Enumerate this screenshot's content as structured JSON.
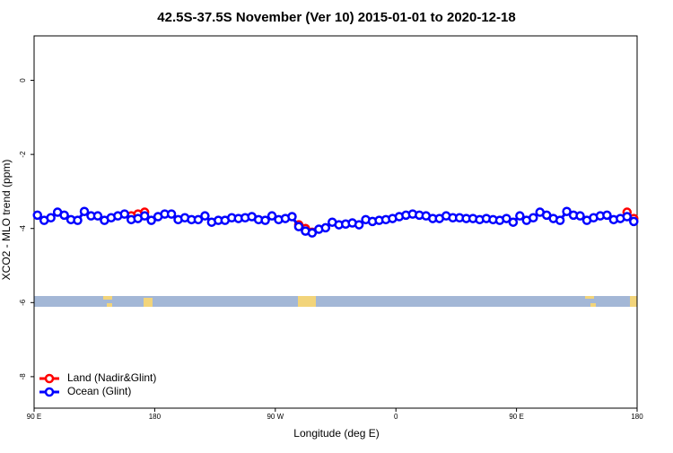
{
  "chart_data": {
    "type": "line",
    "title": "42.5S-37.5S November (Ver 10)   2015-01-01 to 2020-12-18",
    "xlabel": "Longitude (deg E)",
    "ylabel": "XCO2 - MLO trend (ppm)",
    "xlim": [
      90,
      540
    ],
    "xticks": [
      {
        "value": 90,
        "label": "90 E"
      },
      180,
      {
        "value": 270,
        "label": "90 W"
      },
      {
        "value": 360,
        "label": "0"
      },
      {
        "value": 450,
        "label": "90 E"
      },
      {
        "value": 540,
        "label": "180"
      }
    ],
    "ylim": [
      -8.85,
      1.2
    ],
    "yticks": [
      0,
      -2,
      -4,
      -6,
      -8
    ],
    "legend": "bottom-left",
    "series": [
      {
        "name": "Land (Nadir&Glint)",
        "color": "#ff0000",
        "x": [
          162.5,
          167.5,
          172.5,
          null,
          287.5,
          292.5,
          297.5,
          null,
          532.5,
          537.5
        ],
        "values": [
          -3.66,
          -3.61,
          -3.56,
          null,
          -3.9,
          -4.0,
          -4.1,
          null,
          -3.56,
          -3.73
        ]
      },
      {
        "name": "Ocean (Glint)",
        "color": "#0000ff",
        "x": [
          92.5,
          97.5,
          102.5,
          107.5,
          112.5,
          117.5,
          122.5,
          127.5,
          132.5,
          137.5,
          142.5,
          147.5,
          152.5,
          157.5,
          162.5,
          167.5,
          172.5,
          177.5,
          182.5,
          187.5,
          192.5,
          197.5,
          202.5,
          207.5,
          212.5,
          217.5,
          222.5,
          227.5,
          232.5,
          237.5,
          242.5,
          247.5,
          252.5,
          257.5,
          262.5,
          267.5,
          272.5,
          277.5,
          282.5,
          287.5,
          292.5,
          297.5,
          302.5,
          307.5,
          312.5,
          317.5,
          322.5,
          327.5,
          332.5,
          337.5,
          342.5,
          347.5,
          352.5,
          357.5,
          362.5,
          367.5,
          372.5,
          377.5,
          382.5,
          387.5,
          392.5,
          397.5,
          402.5,
          407.5,
          412.5,
          417.5,
          422.5,
          427.5,
          432.5,
          437.5,
          442.5,
          447.5,
          452.5,
          457.5,
          462.5,
          467.5,
          472.5,
          477.5,
          482.5,
          487.5,
          492.5,
          497.5,
          502.5,
          507.5,
          512.5,
          517.5,
          522.5,
          527.5,
          532.5,
          537.5
        ],
        "values": [
          -3.64,
          -3.78,
          -3.71,
          -3.56,
          -3.64,
          -3.76,
          -3.78,
          -3.54,
          -3.66,
          -3.66,
          -3.78,
          -3.71,
          -3.66,
          -3.61,
          -3.76,
          -3.73,
          -3.66,
          -3.78,
          -3.68,
          -3.61,
          -3.61,
          -3.76,
          -3.71,
          -3.76,
          -3.76,
          -3.66,
          -3.83,
          -3.78,
          -3.78,
          -3.71,
          -3.73,
          -3.71,
          -3.68,
          -3.76,
          -3.78,
          -3.66,
          -3.76,
          -3.73,
          -3.68,
          -3.95,
          -4.07,
          -4.12,
          -4.02,
          -3.98,
          -3.83,
          -3.9,
          -3.88,
          -3.85,
          -3.9,
          -3.76,
          -3.81,
          -3.78,
          -3.76,
          -3.73,
          -3.68,
          -3.64,
          -3.61,
          -3.64,
          -3.66,
          -3.73,
          -3.73,
          -3.66,
          -3.71,
          -3.71,
          -3.73,
          -3.73,
          -3.76,
          -3.73,
          -3.76,
          -3.78,
          -3.73,
          -3.83,
          -3.66,
          -3.78,
          -3.71,
          -3.56,
          -3.64,
          -3.73,
          -3.78,
          -3.54,
          -3.64,
          -3.66,
          -3.78,
          -3.71,
          -3.66,
          -3.64,
          -3.76,
          -3.73,
          -3.68,
          -3.81
        ]
      }
    ]
  }
}
